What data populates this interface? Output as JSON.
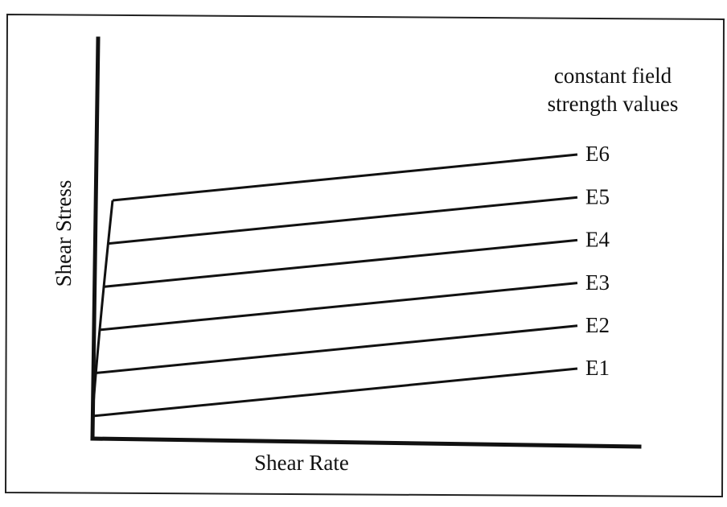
{
  "annotation": [
    "constant field",
    "strength values"
  ],
  "y_axis_label": "Shear Stress",
  "x_axis_label": "Shear Rate",
  "lines": [
    {
      "label": "E6"
    },
    {
      "label": "E5"
    },
    {
      "label": "E4"
    },
    {
      "label": "E3"
    },
    {
      "label": "E2"
    },
    {
      "label": "E1"
    }
  ]
}
